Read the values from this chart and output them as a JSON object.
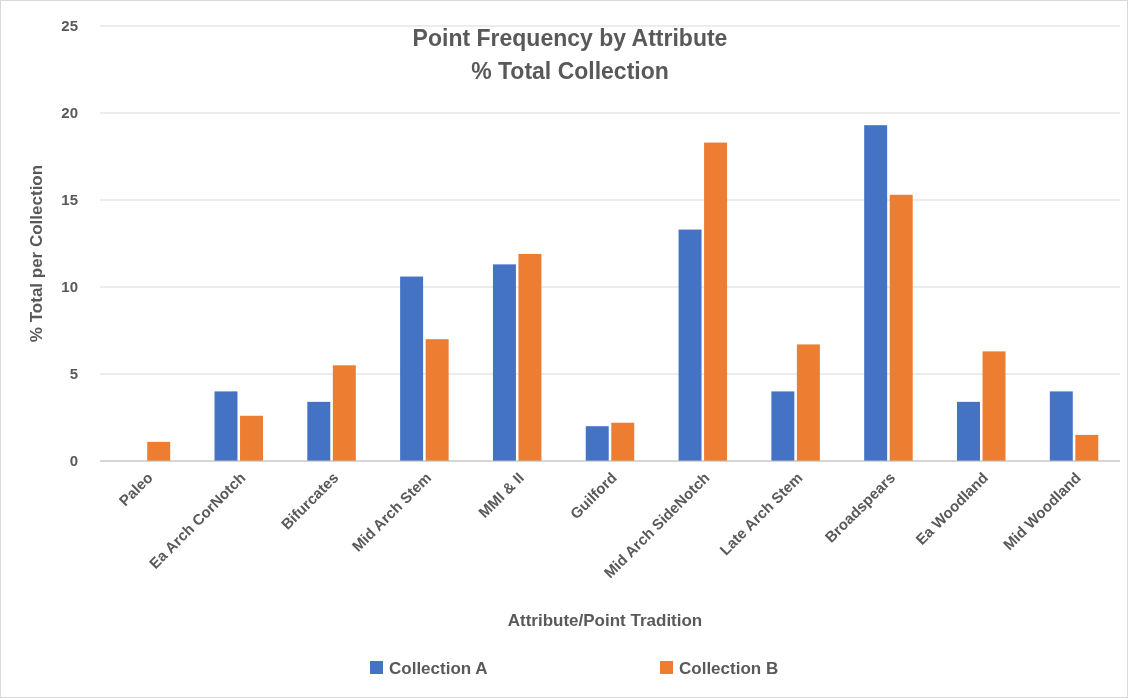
{
  "chart_data": {
    "type": "bar",
    "title": "Point Frequency by Attribute\n% Total Collection",
    "xlabel": "Attribute/Point Tradition",
    "ylabel": "% Total per Collection",
    "categories": [
      "Paleo",
      "Ea Arch CorNotch",
      "Bifurcates",
      "Mid Arch Stem",
      "MMI & II",
      "Guilford",
      "Mid Arch SideNotch",
      "Late Arch Stem",
      "Broadspears",
      "Ea Woodland",
      "Mid Woodland"
    ],
    "series": [
      {
        "name": "Collection A",
        "color": "#4472c4",
        "values": [
          0,
          4.0,
          3.4,
          10.6,
          11.3,
          2.0,
          13.3,
          4.0,
          19.3,
          3.4,
          4.0
        ]
      },
      {
        "name": "Collection B",
        "color": "#ed7d31",
        "values": [
          1.1,
          2.6,
          5.5,
          7.0,
          11.9,
          2.2,
          18.3,
          6.7,
          15.3,
          6.3,
          1.5
        ]
      }
    ],
    "ylim": [
      0,
      25
    ],
    "yticks": [
      0,
      5,
      10,
      15,
      20,
      25
    ],
    "grid": "y",
    "legend": "bottom"
  }
}
